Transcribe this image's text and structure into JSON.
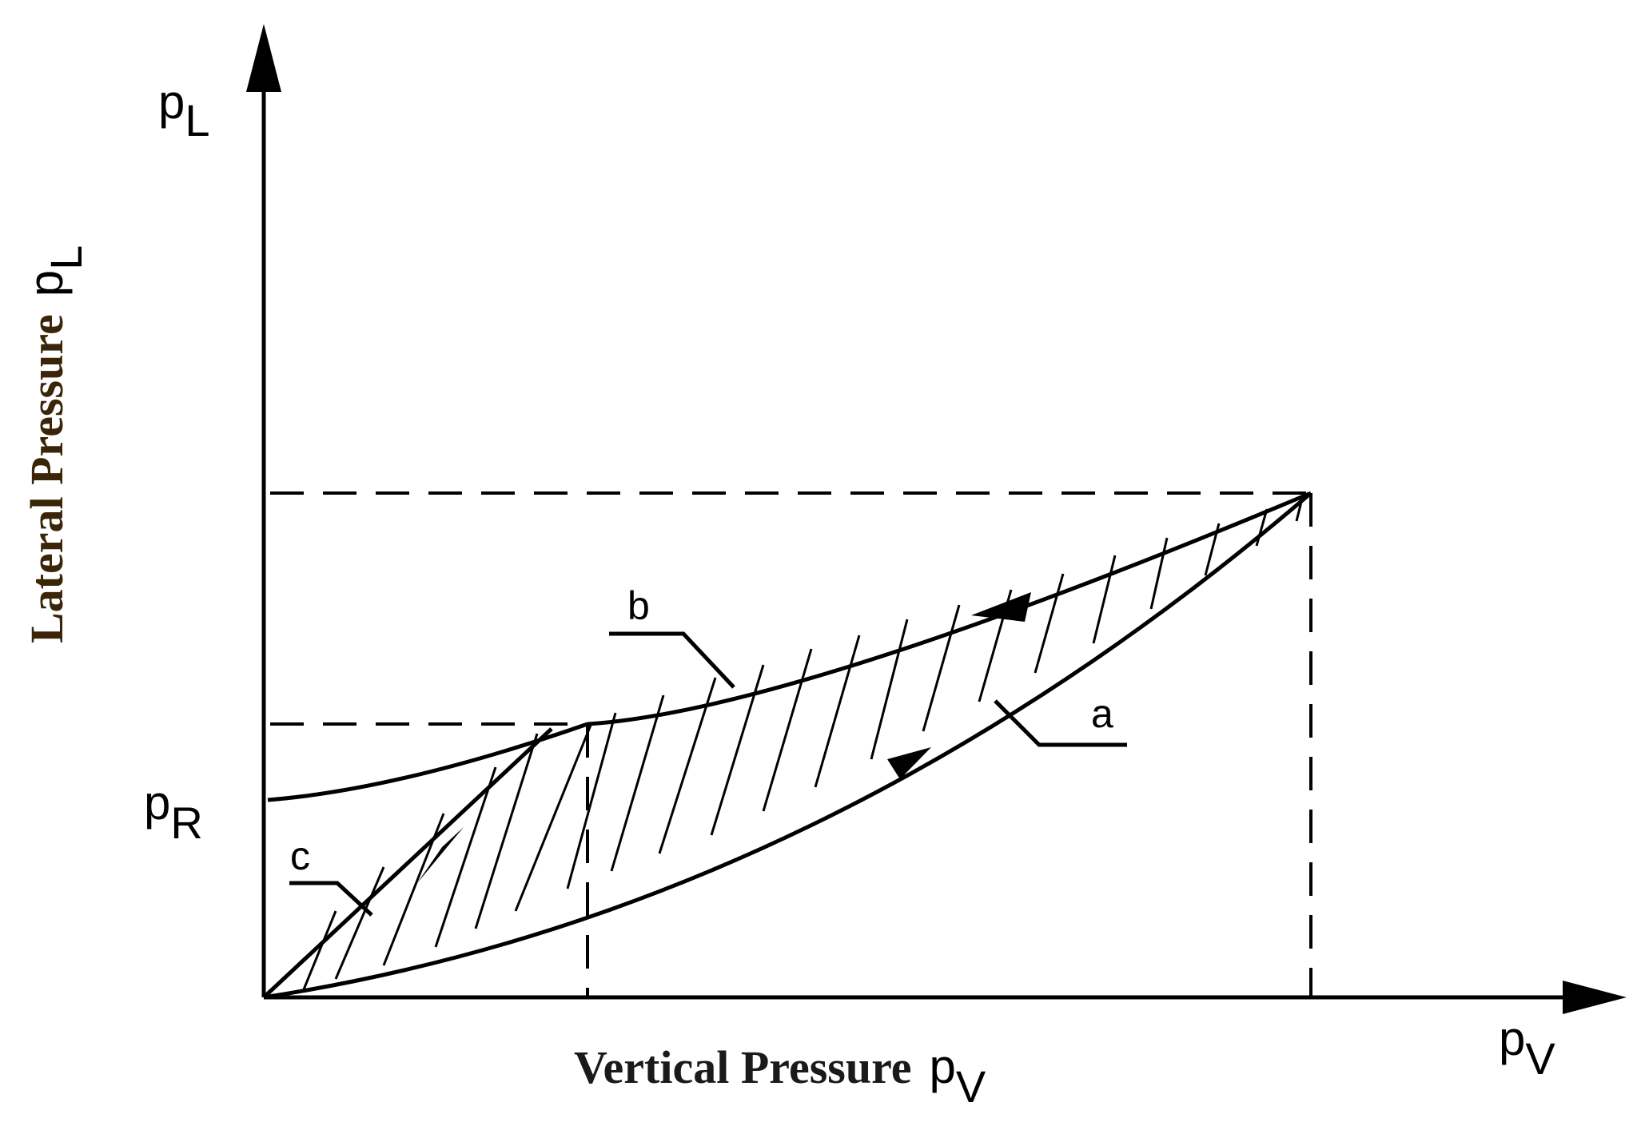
{
  "axes": {
    "y_symbol": "p",
    "y_symbol_sub": "L",
    "x_symbol": "p",
    "x_symbol_sub": "V",
    "y_title": "Lateral Pressure",
    "y_title_symbol": "p",
    "y_title_symbol_sub": "L",
    "x_title": "Vertical Pressure",
    "x_title_symbol": "p",
    "x_title_symbol_sub": "V"
  },
  "residual_label": {
    "symbol": "p",
    "sub": "R"
  },
  "curves": {
    "a": "a",
    "b": "b",
    "c": "c"
  },
  "colors": {
    "line": "#000000",
    "y_title": "#3a2508",
    "x_title": "#1a1a1a"
  }
}
